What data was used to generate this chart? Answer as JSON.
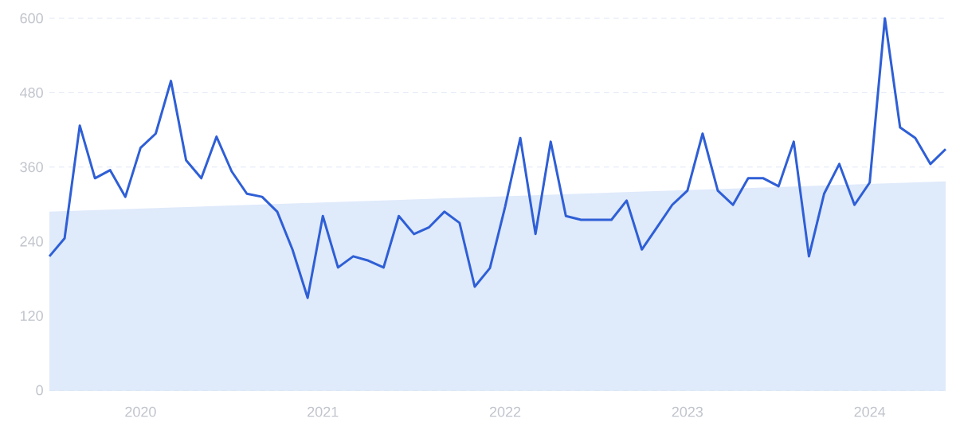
{
  "chart_data": {
    "type": "line",
    "x": [
      "2019-07",
      "2019-08",
      "2019-09",
      "2019-10",
      "2019-11",
      "2019-12",
      "2020-01",
      "2020-02",
      "2020-03",
      "2020-04",
      "2020-05",
      "2020-06",
      "2020-07",
      "2020-08",
      "2020-09",
      "2020-10",
      "2020-11",
      "2020-12",
      "2021-01",
      "2021-02",
      "2021-03",
      "2021-04",
      "2021-05",
      "2021-06",
      "2021-07",
      "2021-08",
      "2021-09",
      "2021-10",
      "2021-11",
      "2021-12",
      "2022-01",
      "2022-02",
      "2022-03",
      "2022-04",
      "2022-05",
      "2022-06",
      "2022-07",
      "2022-08",
      "2022-09",
      "2022-10",
      "2022-11",
      "2022-12",
      "2023-01",
      "2023-02",
      "2023-03",
      "2023-04",
      "2023-05",
      "2023-06",
      "2023-07",
      "2023-08",
      "2023-09",
      "2023-10",
      "2023-11",
      "2023-12",
      "2024-01",
      "2024-02",
      "2024-03",
      "2024-04",
      "2024-05",
      "2024-06"
    ],
    "series": [
      {
        "type": "area",
        "color": "#dfeafb",
        "x": [
          "2019-07",
          "2024-06"
        ],
        "values": [
          288,
          337
        ]
      },
      {
        "color": "#2f5fd6",
        "values": [
          216,
          245,
          427,
          342,
          355,
          312,
          391,
          414,
          499,
          371,
          342,
          409,
          353,
          317,
          312,
          288,
          227,
          149,
          281,
          198,
          216,
          209,
          198,
          281,
          252,
          263,
          288,
          270,
          167,
          197,
          296,
          407,
          252,
          401,
          281,
          275,
          275,
          275,
          306,
          227,
          263,
          299,
          322,
          414,
          322,
          299,
          342,
          342,
          329,
          401,
          216,
          317,
          365,
          299,
          335,
          600,
          424,
          407,
          365,
          389
        ]
      }
    ],
    "xlim": [
      "2019-07",
      "2024-06"
    ],
    "xticks": [
      {
        "value": "2020-01",
        "label": "2020"
      },
      {
        "value": "2021-01",
        "label": "2021"
      },
      {
        "value": "2022-01",
        "label": "2022"
      },
      {
        "value": "2023-01",
        "label": "2023"
      },
      {
        "value": "2024-01",
        "label": "2024"
      }
    ],
    "ylim": [
      0,
      600
    ],
    "yticks": [
      0,
      120,
      240,
      360,
      480,
      600
    ],
    "grid": "y",
    "marker": "none",
    "line_style": "solid"
  }
}
